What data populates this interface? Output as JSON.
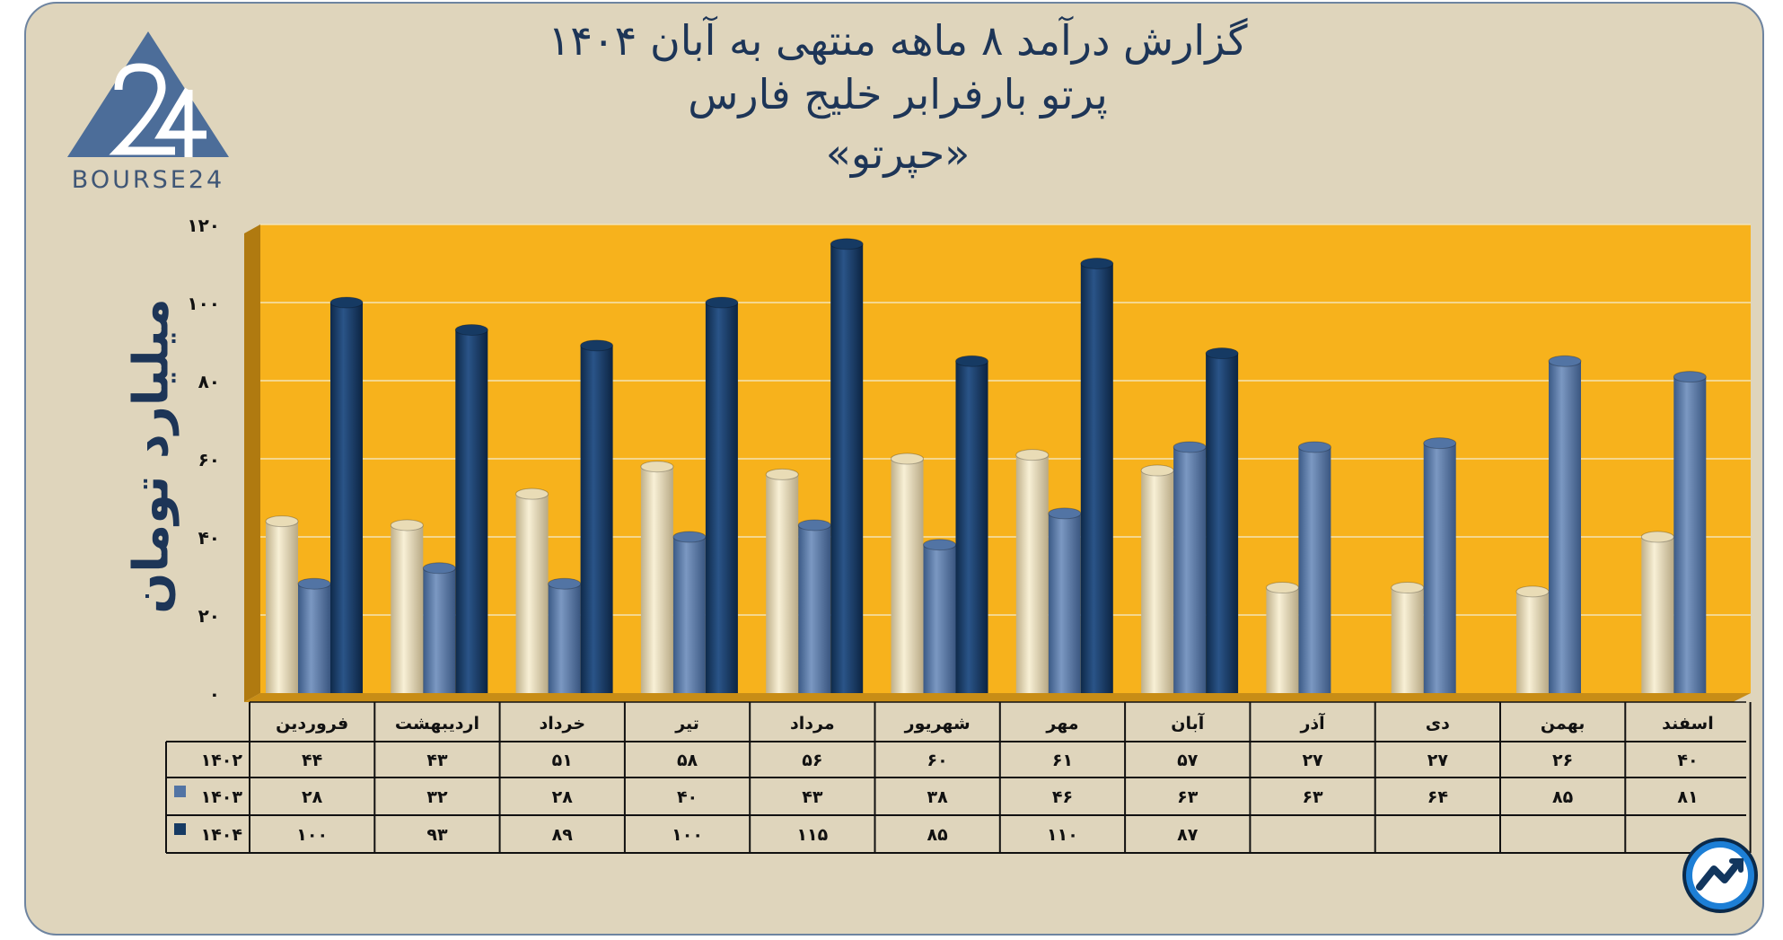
{
  "title": {
    "line1": "گزارش  درآمد ۸ ماهه منتهی به آبان ۱۴۰۴",
    "line2": "پرتو بارفرابر خلیج فارس",
    "line3": "«حپرتو»"
  },
  "logo": {
    "text": "BOURSE24",
    "icon": "bourse24-logo"
  },
  "badge": {
    "icon": "trend-chart-icon"
  },
  "colors": {
    "background": "#dfd5bc",
    "plot": "#f7b21c",
    "s1402": "#e9dcb6",
    "s1403": "#5274a4",
    "s1404": "#163a63"
  },
  "chart_data": {
    "type": "bar",
    "ylabel": "میلیارد تومان",
    "ylim": [
      0,
      120
    ],
    "yticks": [
      "۰",
      "۲۰",
      "۴۰",
      "۶۰",
      "۸۰",
      "۱۰۰",
      "۱۲۰"
    ],
    "categories": [
      "فروردین",
      "اردیبهشت",
      "خرداد",
      "تیر",
      "مرداد",
      "شهریور",
      "مهر",
      "آبان",
      "آذر",
      "دی",
      "بهمن",
      "اسفند"
    ],
    "series": [
      {
        "name": "۱۴۰۲",
        "color": "#e9dcb6",
        "values": [
          44,
          43,
          51,
          58,
          56,
          60,
          61,
          57,
          27,
          27,
          26,
          40
        ],
        "labels": [
          "۴۴",
          "۴۳",
          "۵۱",
          "۵۸",
          "۵۶",
          "۶۰",
          "۶۱",
          "۵۷",
          "۲۷",
          "۲۷",
          "۲۶",
          "۴۰"
        ]
      },
      {
        "name": "۱۴۰۳",
        "color": "#5274a4",
        "values": [
          28,
          32,
          28,
          40,
          43,
          38,
          46,
          63,
          63,
          64,
          85,
          81
        ],
        "labels": [
          "۲۸",
          "۳۲",
          "۲۸",
          "۴۰",
          "۴۳",
          "۳۸",
          "۴۶",
          "۶۳",
          "۶۳",
          "۶۴",
          "۸۵",
          "۸۱"
        ]
      },
      {
        "name": "۱۴۰۴",
        "color": "#163a63",
        "values": [
          100,
          93,
          89,
          100,
          115,
          85,
          110,
          87,
          null,
          null,
          null,
          null
        ],
        "labels": [
          "۱۰۰",
          "۹۳",
          "۸۹",
          "۱۰۰",
          "۱۱۵",
          "۸۵",
          "۱۱۰",
          "۸۷",
          "",
          "",
          "",
          ""
        ]
      }
    ],
    "grid": true,
    "legend": "data-table"
  }
}
